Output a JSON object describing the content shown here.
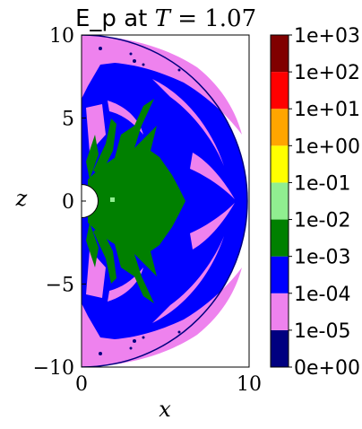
{
  "chart_data": {
    "type": "heatmap",
    "title": "E_p at T = 1.07",
    "title_prefix": "E_p at ",
    "title_var": "T",
    "title_rest": " = 1.07",
    "xlabel": "x",
    "ylabel": "z",
    "xlim": [
      0,
      10
    ],
    "ylim": [
      -10,
      10
    ],
    "x_ticks": [
      {
        "value": 0,
        "label": "0"
      },
      {
        "value": 10,
        "label": "10"
      }
    ],
    "y_ticks": [
      {
        "value": 10,
        "label": "10"
      },
      {
        "value": 5,
        "label": "5"
      },
      {
        "value": 0,
        "label": "0"
      },
      {
        "value": -5,
        "label": "−5"
      },
      {
        "value": -10,
        "label": "−10"
      }
    ],
    "colorbar": {
      "levels": [
        "0e+00",
        "1e-05",
        "1e-04",
        "1e-03",
        "1e-02",
        "1e-01",
        "1e+00",
        "1e+01",
        "1e+02",
        "1e+03"
      ],
      "colors": [
        "#000080",
        "#ee82ee",
        "#0000ff",
        "#008000",
        "#90ee90",
        "#ffff00",
        "#ffa500",
        "#ff0000",
        "#800000"
      ]
    },
    "domain": {
      "outer_radius": 10,
      "inner_radius": 1
    }
  }
}
